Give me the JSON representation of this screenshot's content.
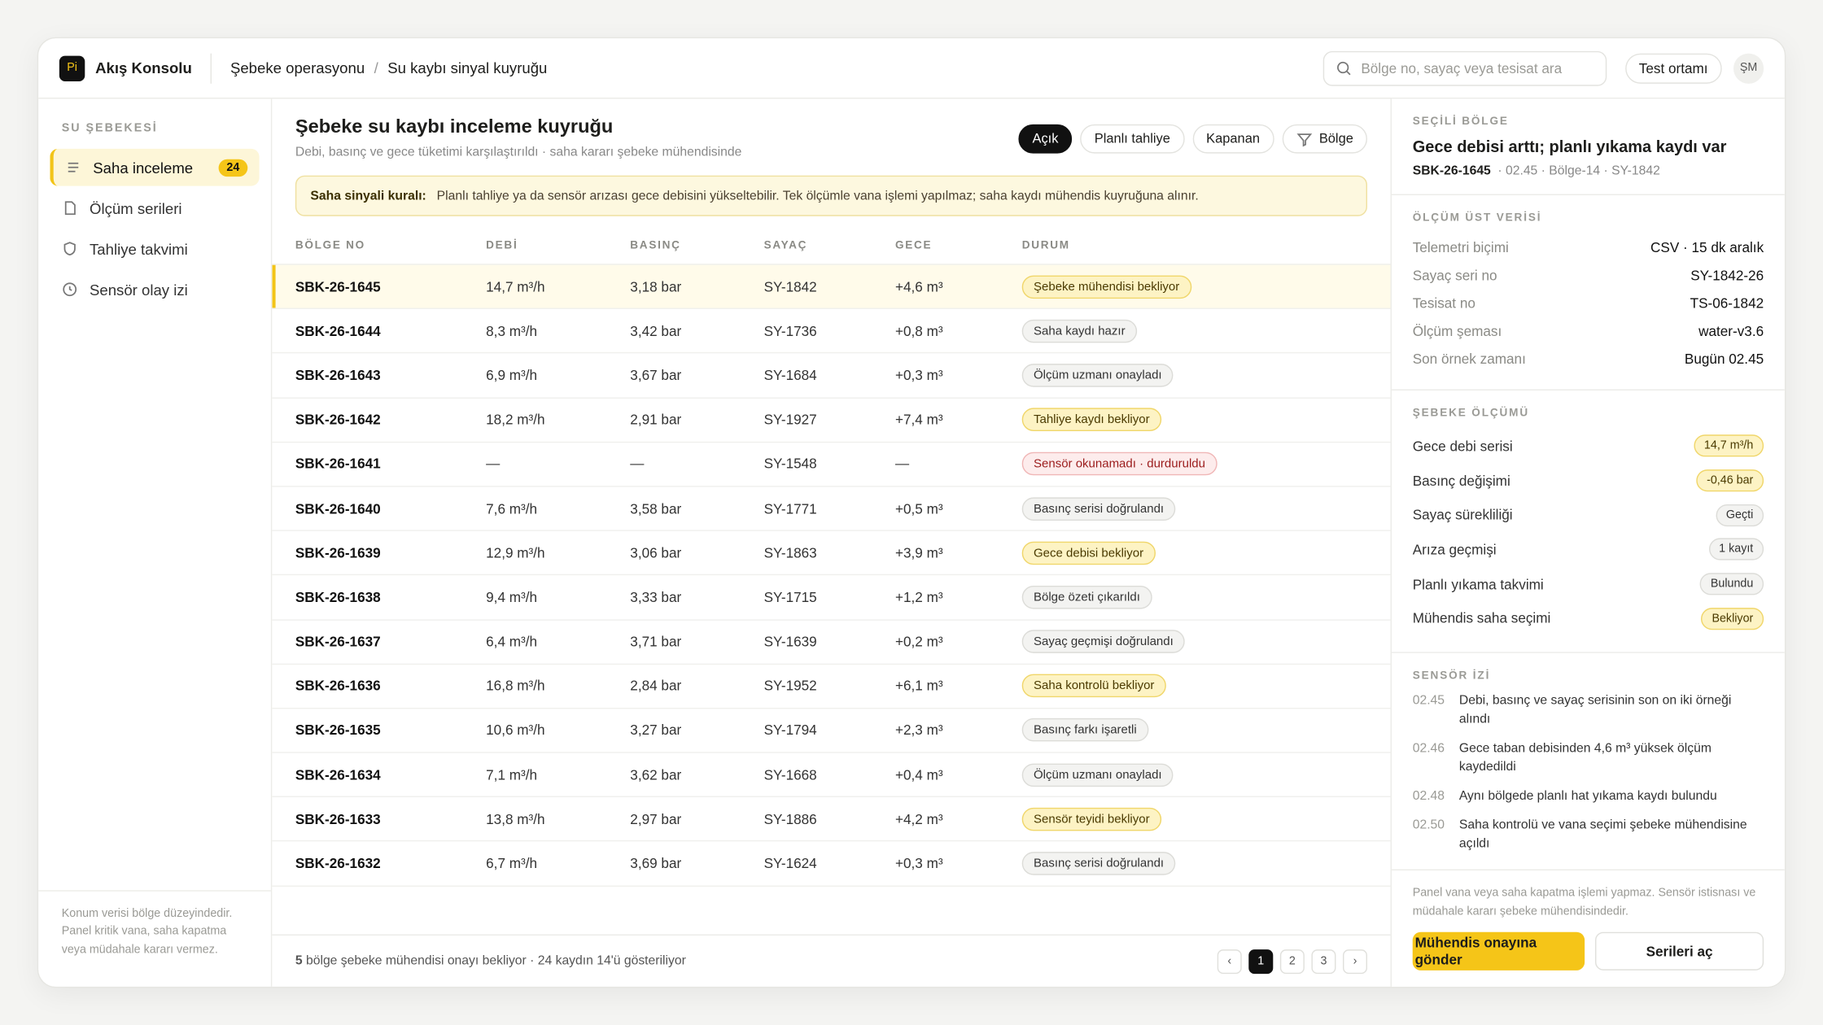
{
  "app": {
    "logo": "Pi",
    "brand": "Akış Konsolu",
    "breadcrumb": [
      "Şebeke operasyonu",
      "Su kaybı sinyal kuyruğu"
    ],
    "breadcrumb_separator": "/",
    "search_placeholder": "Bölge no, sayaç veya tesisat ara",
    "environment": "Test ortamı",
    "avatar": "ŞM"
  },
  "sidebar": {
    "section": "SU ŞEBEKESİ",
    "items": [
      {
        "label": "Saha inceleme",
        "badge": "24",
        "active": true
      },
      {
        "label": "Ölçüm serileri"
      },
      {
        "label": "Tahliye takvimi"
      },
      {
        "label": "Sensör olay izi"
      }
    ],
    "note": "Konum verisi bölge düzeyindedir. Panel kritik vana, saha kapatma veya müdahale kararı vermez."
  },
  "main": {
    "title": "Şebeke su kaybı inceleme kuyruğu",
    "subtitle": "Debi, basınç ve gece tüketimi karşılaştırıldı · saha kararı şebeke mühendisinde",
    "filters": [
      {
        "label": "Açık",
        "active": true
      },
      {
        "label": "Planlı tahliye"
      },
      {
        "label": "Kapanan"
      },
      {
        "label": "Bölge",
        "icon": true
      }
    ],
    "rule_label": "Saha sinyali kuralı:",
    "rule_text": "Planlı tahliye ya da sensör arızası gece debisini yükseltebilir. Tek ölçümle vana işlemi yapılmaz; saha kaydı mühendis kuyruğuna alınır.",
    "table": {
      "columns": [
        "BÖLGE NO",
        "DEBİ",
        "BASINÇ",
        "SAYAÇ",
        "GECE",
        "DURUM"
      ],
      "rows": [
        [
          "SBK-26-1645",
          "14,7 m³/h",
          "3,18 bar",
          "SY-1842",
          "+4,6 m³",
          "Şebeke mühendisi bekliyor"
        ],
        [
          "SBK-26-1644",
          "8,3 m³/h",
          "3,42 bar",
          "SY-1736",
          "+0,8 m³",
          "Saha kaydı hazır"
        ],
        [
          "SBK-26-1643",
          "6,9 m³/h",
          "3,67 bar",
          "SY-1684",
          "+0,3 m³",
          "Ölçüm uzmanı onayladı"
        ],
        [
          "SBK-26-1642",
          "18,2 m³/h",
          "2,91 bar",
          "SY-1927",
          "+7,4 m³",
          "Tahliye kaydı bekliyor"
        ],
        [
          "SBK-26-1641",
          "—",
          "—",
          "SY-1548",
          "—",
          "Sensör okunamadı · durduruldu"
        ],
        [
          "SBK-26-1640",
          "7,6 m³/h",
          "3,58 bar",
          "SY-1771",
          "+0,5 m³",
          "Basınç serisi doğrulandı"
        ],
        [
          "SBK-26-1639",
          "12,9 m³/h",
          "3,06 bar",
          "SY-1863",
          "+3,9 m³",
          "Gece debisi bekliyor"
        ],
        [
          "SBK-26-1638",
          "9,4 m³/h",
          "3,33 bar",
          "SY-1715",
          "+1,2 m³",
          "Bölge özeti çıkarıldı"
        ],
        [
          "SBK-26-1637",
          "6,4 m³/h",
          "3,71 bar",
          "SY-1639",
          "+0,2 m³",
          "Sayaç geçmişi doğrulandı"
        ],
        [
          "SBK-26-1636",
          "16,8 m³/h",
          "2,84 bar",
          "SY-1952",
          "+6,1 m³",
          "Saha kontrolü bekliyor"
        ],
        [
          "SBK-26-1635",
          "10,6 m³/h",
          "3,27 bar",
          "SY-1794",
          "+2,3 m³",
          "Basınç farkı işaretli"
        ],
        [
          "SBK-26-1634",
          "7,1 m³/h",
          "3,62 bar",
          "SY-1668",
          "+0,4 m³",
          "Ölçüm uzmanı onayladı"
        ],
        [
          "SBK-26-1633",
          "13,8 m³/h",
          "2,97 bar",
          "SY-1886",
          "+4,2 m³",
          "Sensör teyidi bekliyor"
        ],
        [
          "SBK-26-1632",
          "6,7 m³/h",
          "3,69 bar",
          "SY-1624",
          "+0,3 m³",
          "Basınç serisi doğrulandı"
        ]
      ],
      "status_tones": [
        "warn",
        "neutral",
        "neutral",
        "warn",
        "danger",
        "neutral",
        "warn",
        "neutral",
        "neutral",
        "warn",
        "neutral",
        "neutral",
        "warn",
        "neutral"
      ],
      "selected_row": 0
    },
    "footer_count": "5",
    "footer_text": " bölge şebeke mühendisi onayı bekliyor · 24 kaydın 14'ü gösteriliyor",
    "pagination": [
      "‹",
      "1",
      "2",
      "3",
      "›"
    ],
    "current_page": 1
  },
  "panel": {
    "section": "SEÇİLİ BÖLGE",
    "title": "Gece debisi arttı; planlı yıkama kaydı var",
    "id": "SBK-26-1645",
    "meta": "· 02.45 · Bölge-14 · SY-1842",
    "metadata_title": "ÖLÇÜM ÜST VERİSİ",
    "metadata": [
      [
        "Telemetri biçimi",
        "CSV · 15 dk aralık"
      ],
      [
        "Sayaç seri no",
        "SY-1842-26"
      ],
      [
        "Tesisat no",
        "TS-06-1842"
      ],
      [
        "Ölçüm şeması",
        "water-v3.6"
      ],
      [
        "Son örnek zamanı",
        "Bugün 02.45"
      ]
    ],
    "measurement_title": "ŞEBEKE ÖLÇÜMÜ",
    "measurements": [
      [
        "Gece debi serisi",
        "14,7 m³/h",
        "warn"
      ],
      [
        "Basınç değişimi",
        "-0,46 bar",
        "warn"
      ],
      [
        "Sayaç sürekliliği",
        "Geçti",
        "neutral"
      ],
      [
        "Arıza geçmişi",
        "1 kayıt",
        "neutral"
      ],
      [
        "Planlı yıkama takvimi",
        "Bulundu",
        "neutral"
      ],
      [
        "Mühendis saha seçimi",
        "Bekliyor",
        "warn"
      ]
    ],
    "trail_title": "SENSÖR İZİ",
    "trail": [
      [
        "02.45",
        "Debi, basınç ve sayaç serisinin son on iki örneği alındı"
      ],
      [
        "02.46",
        "Gece taban debisinden 4,6 m³ yüksek ölçüm kaydedildi"
      ],
      [
        "02.48",
        "Aynı bölgede planlı hat yıkama kaydı bulundu"
      ],
      [
        "02.50",
        "Saha kontrolü ve vana seçimi şebeke mühendisine açıldı"
      ]
    ],
    "note": "Panel vana veya saha kapatma işlemi yapmaz. Sensör istisnası ve müdahale kararı şebeke mühendisindedir.",
    "primary_button": "Mühendis onayına gönder",
    "secondary_button": "Serileri aç"
  }
}
